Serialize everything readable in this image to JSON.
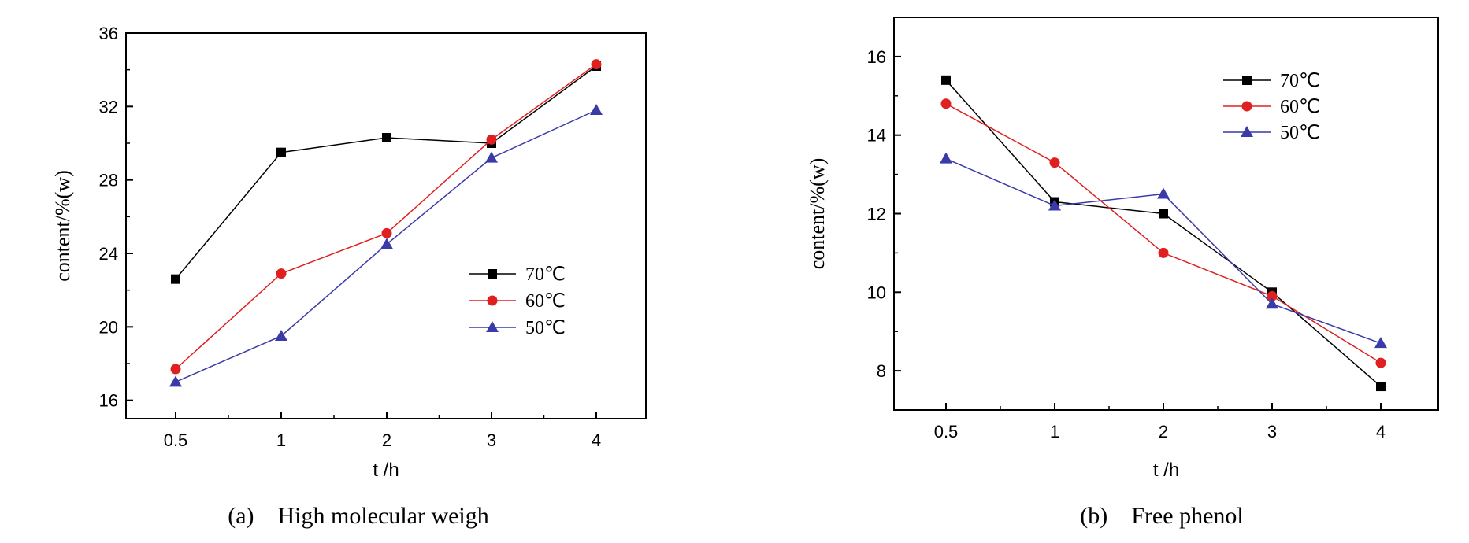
{
  "chart_data": [
    {
      "type": "line",
      "caption": "(a)　High molecular weigh",
      "xlabel": "t /h",
      "ylabel": "content/%(w)",
      "categories": [
        "0.5",
        "1",
        "2",
        "3",
        "4"
      ],
      "ylim": [
        15,
        36
      ],
      "yticks": [
        16,
        20,
        24,
        28,
        32,
        36
      ],
      "legend_position": "center-right",
      "grid": false,
      "series": [
        {
          "name": "70℃",
          "color": "#000000",
          "marker": "square",
          "values": [
            22.6,
            29.5,
            30.3,
            30.0,
            34.2
          ]
        },
        {
          "name": "60℃",
          "color": "#e02020",
          "marker": "circle",
          "values": [
            17.7,
            22.9,
            25.1,
            30.2,
            34.3
          ]
        },
        {
          "name": "50℃",
          "color": "#3a3aa8",
          "marker": "triangle",
          "values": [
            17.0,
            19.5,
            24.5,
            29.2,
            31.8
          ]
        }
      ]
    },
    {
      "type": "line",
      "caption": "(b)　Free phenol",
      "xlabel": "t /h",
      "ylabel": "content/%(w)",
      "categories": [
        "0.5",
        "1",
        "2",
        "3",
        "4"
      ],
      "ylim": [
        7,
        17
      ],
      "yticks": [
        8,
        10,
        12,
        14,
        16
      ],
      "legend_position": "top-right",
      "grid": false,
      "series": [
        {
          "name": "70℃",
          "color": "#000000",
          "marker": "square",
          "values": [
            15.4,
            12.3,
            12.0,
            10.0,
            7.6
          ]
        },
        {
          "name": "60℃",
          "color": "#e02020",
          "marker": "circle",
          "values": [
            14.8,
            13.3,
            11.0,
            9.9,
            8.2
          ]
        },
        {
          "name": "50℃",
          "color": "#3a3aa8",
          "marker": "triangle",
          "values": [
            13.4,
            12.2,
            12.5,
            9.7,
            8.7
          ]
        }
      ]
    }
  ]
}
